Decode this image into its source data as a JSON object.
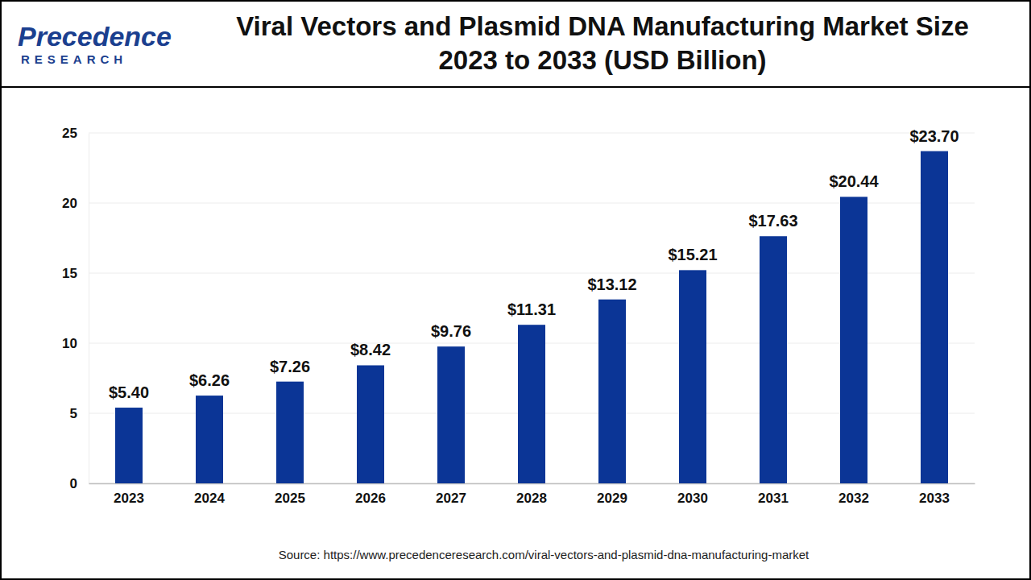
{
  "chart_data": {
    "type": "bar",
    "title": "Viral Vectors and Plasmid DNA Manufacturing Market Size 2023 to 2033 (USD Billion)",
    "logo_text": "Precedence",
    "logo_subtext": "RESEARCH",
    "source": "Source: https://www.precedenceresearch.com/viral-vectors-and-plasmid-dna-manufacturing-market",
    "categories": [
      "2023",
      "2024",
      "2025",
      "2026",
      "2027",
      "2028",
      "2029",
      "2030",
      "2031",
      "2032",
      "2033"
    ],
    "values": [
      5.4,
      6.26,
      7.26,
      8.42,
      9.76,
      11.31,
      13.12,
      15.21,
      17.63,
      20.44,
      23.7
    ],
    "value_labels": [
      "$5.40",
      "$6.26",
      "$7.26",
      "$8.42",
      "$9.76",
      "$11.31",
      "$13.12",
      "$15.21",
      "$17.63",
      "$20.44",
      "$23.70"
    ],
    "color": "#0b3596",
    "ylim": [
      0,
      25
    ],
    "yticks": [
      0,
      5,
      10,
      15,
      20,
      25
    ],
    "grid": true,
    "data_labels": true
  }
}
